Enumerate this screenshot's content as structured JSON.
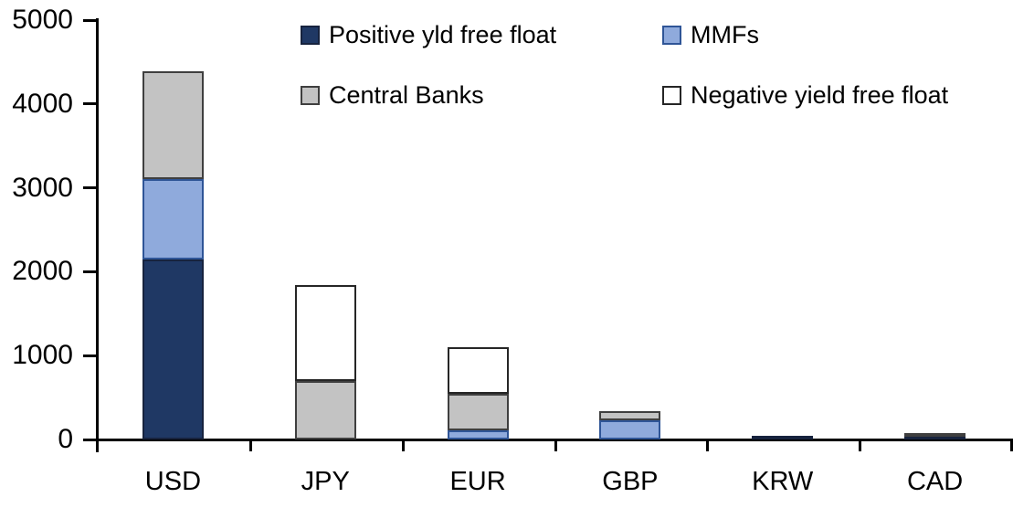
{
  "chart_data": {
    "type": "bar",
    "stacked": true,
    "title": "",
    "xlabel": "",
    "ylabel": "",
    "categories": [
      "USD",
      "JPY",
      "EUR",
      "GBP",
      "KRW",
      "CAD"
    ],
    "series": [
      {
        "name": "Positive yld free float",
        "color": "#1F3864",
        "border_color": "#17233E",
        "values": [
          2150,
          0,
          0,
          0,
          45,
          40
        ]
      },
      {
        "name": "MMFs",
        "color": "#8FAADC",
        "border_color": "#2F5597",
        "values": [
          950,
          0,
          110,
          230,
          0,
          0
        ]
      },
      {
        "name": "Central Banks",
        "color": "#C3C3C3",
        "border_color": "#3F3F3F",
        "values": [
          1290,
          700,
          430,
          110,
          0,
          35
        ]
      },
      {
        "name": "Negative yield free float",
        "color": "#FFFFFF",
        "border_color": "#262626",
        "values": [
          0,
          1140,
          560,
          0,
          0,
          0
        ]
      }
    ],
    "totals_by_category": [
      4390,
      1840,
      1100,
      340,
      45,
      75
    ],
    "ylim": [
      0,
      5000
    ],
    "yticks": [
      0,
      1000,
      2000,
      3000,
      4000,
      5000
    ],
    "ytick_labels": [
      "0",
      "1000",
      "2000",
      "3000",
      "4000",
      "5000"
    ],
    "grid": "off",
    "legend_position": "top-inside, two columns, two rows",
    "axis_color": "#000000"
  }
}
